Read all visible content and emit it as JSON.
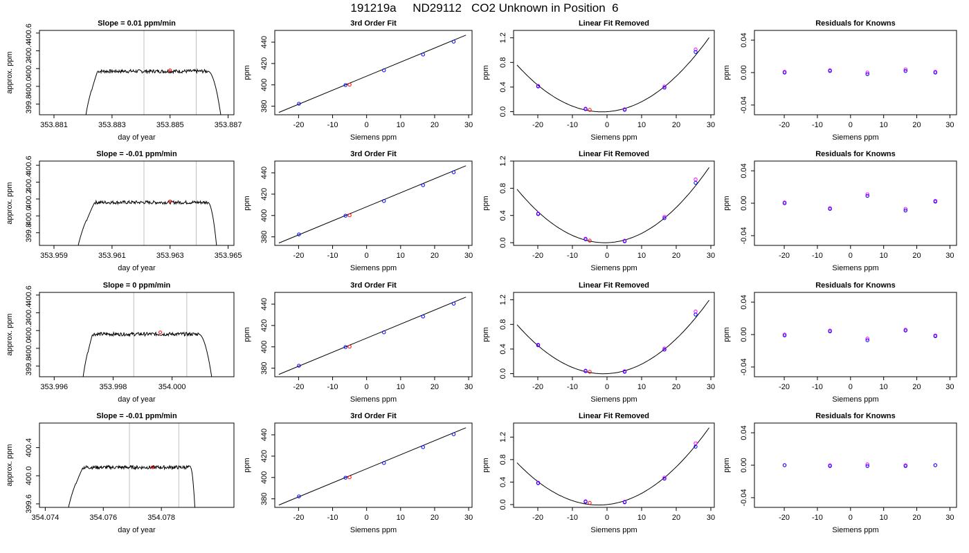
{
  "figure": {
    "title": "191219a     ND29112   CO2 Unknown in Position  6",
    "colors": {
      "trace": "#000000",
      "known": "#0000ff",
      "known_alt": "#ff00ff",
      "unknown": "#ff0000",
      "vline": "#bfbfbf"
    }
  },
  "chart_data": [
    {
      "type": "line",
      "title": "Slope =  0.01  ppm/min",
      "xlabel": "day of year",
      "ylabel": "approx. ppm",
      "xlim": [
        353.8805,
        353.8872
      ],
      "ylim": [
        399.68,
        400.63
      ],
      "xticks": [
        353.881,
        353.883,
        353.885,
        353.887
      ],
      "xtick_labels": [
        "353.881",
        "353.883",
        "353.885",
        "353.887"
      ],
      "yticks": [
        399.8,
        400.0,
        400.2,
        400.4,
        400.6
      ],
      "ytick_labels": [
        "399.8",
        "400.0",
        "400.2",
        "400.4",
        "400.6"
      ],
      "vlines": [
        353.8841,
        353.8859
      ],
      "marker": {
        "x": 353.885,
        "y": 400.18
      },
      "trace": {
        "x_start": 353.882,
        "x_rise_end": 353.8825,
        "x_fall_start": 353.8863,
        "x_end": 353.8869,
        "y_plateau": 400.17,
        "noise": 0.02
      }
    },
    {
      "type": "scatter",
      "title": "3rd Order Fit",
      "xlabel": "Siemens ppm",
      "ylabel": "ppm",
      "xlim": [
        -27,
        31
      ],
      "ylim": [
        372,
        451
      ],
      "xticks": [
        -20,
        -10,
        0,
        10,
        20,
        30
      ],
      "yticks": [
        380,
        400,
        420,
        440
      ],
      "line": {
        "x": [
          -25.8,
          29.2
        ],
        "y": [
          374.2,
          446.6
        ]
      },
      "knowns": [
        {
          "x": -19.9,
          "y": 382.3
        },
        {
          "x": -6.2,
          "y": 399.8
        },
        {
          "x": 5.1,
          "y": 413.6
        },
        {
          "x": 16.6,
          "y": 428.4
        },
        {
          "x": 25.6,
          "y": 440.5
        }
      ],
      "unknown": {
        "x": -5.0,
        "y": 400.2
      }
    },
    {
      "type": "scatter",
      "title": "Linear Fit Removed",
      "xlabel": "Siemens ppm",
      "ylabel": "ppm",
      "xlim": [
        -27,
        31
      ],
      "ylim": [
        -0.05,
        1.32
      ],
      "xticks": [
        -20,
        -10,
        0,
        10,
        20,
        30
      ],
      "yticks": [
        0.0,
        0.4,
        0.8,
        1.2
      ],
      "ytick_labels": [
        "0.0",
        "0.4",
        "0.8",
        "1.2"
      ],
      "curve": {
        "x0": -26,
        "x1": 29.5,
        "a": 0.00126,
        "b": 0.0036,
        "c": 0.0
      },
      "knowns": [
        {
          "x": -19.9,
          "y": 0.41
        },
        {
          "x": -6.2,
          "y": 0.04
        },
        {
          "x": 5.1,
          "y": 0.03
        },
        {
          "x": 16.6,
          "y": 0.39
        },
        {
          "x": 25.6,
          "y": 0.97
        }
      ],
      "knowns_alt": [
        {
          "x": -19.9,
          "y": 0.42
        },
        {
          "x": -6.2,
          "y": 0.05
        },
        {
          "x": 5.1,
          "y": 0.04
        },
        {
          "x": 16.6,
          "y": 0.41
        },
        {
          "x": 25.6,
          "y": 1.01
        }
      ],
      "unknown": {
        "x": -5.0,
        "y": 0.03
      }
    },
    {
      "type": "scatter",
      "title": "Residuals for Knowns",
      "xlabel": "Siemens ppm",
      "ylabel": "ppm",
      "xlim": [
        -29,
        32
      ],
      "ylim": [
        -0.052,
        0.052
      ],
      "xticks": [
        -20,
        -10,
        0,
        10,
        20,
        30
      ],
      "yticks": [
        -0.04,
        0.0,
        0.04
      ],
      "ytick_labels": [
        "-0.04",
        "0.00",
        "0.04"
      ],
      "knowns": [
        {
          "x": -19.9,
          "y": 0.0
        },
        {
          "x": -6.2,
          "y": 0.002
        },
        {
          "x": 5.1,
          "y": -0.002
        },
        {
          "x": 16.6,
          "y": 0.002
        },
        {
          "x": 25.6,
          "y": 0.0
        }
      ],
      "knowns_alt": [
        {
          "x": -19.9,
          "y": 0.001
        },
        {
          "x": -6.2,
          "y": 0.003
        },
        {
          "x": 5.1,
          "y": 0.0
        },
        {
          "x": 16.6,
          "y": 0.004
        },
        {
          "x": 25.6,
          "y": 0.001
        }
      ]
    },
    {
      "type": "line",
      "title": "Slope =  -0.01  ppm/min",
      "xlabel": "day of year",
      "ylabel": "approx. ppm",
      "xlim": [
        353.9585,
        353.9652
      ],
      "ylim": [
        399.65,
        400.65
      ],
      "xticks": [
        353.959,
        353.961,
        353.963,
        353.965
      ],
      "xtick_labels": [
        "353.959",
        "353.961",
        "353.963",
        "353.965"
      ],
      "yticks": [
        399.8,
        400.0,
        400.2,
        400.4,
        400.6
      ],
      "ytick_labels": [
        "399.8",
        "400.0",
        "400.2",
        "400.4",
        "400.6"
      ],
      "vlines": [
        353.9621,
        353.9639
      ],
      "marker": {
        "x": 353.963,
        "y": 400.17
      },
      "trace": {
        "x_start": 353.9597,
        "x_rise_end": 353.9604,
        "x_fall_start": 353.9643,
        "x_end": 353.9647,
        "y_plateau": 400.16,
        "noise": 0.02
      }
    },
    {
      "type": "scatter",
      "title": "3rd Order Fit",
      "xlabel": "Siemens ppm",
      "ylabel": "ppm",
      "xlim": [
        -27,
        31
      ],
      "ylim": [
        372,
        451
      ],
      "xticks": [
        -20,
        -10,
        0,
        10,
        20,
        30
      ],
      "yticks": [
        380,
        400,
        420,
        440
      ],
      "line": {
        "x": [
          -25.8,
          29.2
        ],
        "y": [
          374.2,
          446.6
        ]
      },
      "knowns": [
        {
          "x": -19.9,
          "y": 382.3
        },
        {
          "x": -6.2,
          "y": 399.8
        },
        {
          "x": 5.1,
          "y": 413.6
        },
        {
          "x": 16.6,
          "y": 428.4
        },
        {
          "x": 25.6,
          "y": 440.5
        }
      ],
      "unknown": {
        "x": -5.0,
        "y": 400.2
      }
    },
    {
      "type": "scatter",
      "title": "Linear Fit Removed",
      "xlabel": "Siemens ppm",
      "ylabel": "ppm",
      "xlim": [
        -27,
        31
      ],
      "ylim": [
        -0.04,
        1.2
      ],
      "xticks": [
        -20,
        -10,
        0,
        10,
        20,
        30
      ],
      "yticks": [
        0.0,
        0.4,
        0.8,
        1.2
      ],
      "ytick_labels": [
        "0.0",
        "0.4",
        "0.8",
        "1.2"
      ],
      "curve": {
        "x0": -26,
        "x1": 29.5,
        "a": 0.00122,
        "b": 0.0015,
        "c": 0.0
      },
      "knowns": [
        {
          "x": -19.9,
          "y": 0.42
        },
        {
          "x": -6.2,
          "y": 0.05
        },
        {
          "x": 5.1,
          "y": 0.02
        },
        {
          "x": 16.6,
          "y": 0.36
        },
        {
          "x": 25.6,
          "y": 0.88
        }
      ],
      "knowns_alt": [
        {
          "x": -19.9,
          "y": 0.43
        },
        {
          "x": -6.2,
          "y": 0.06
        },
        {
          "x": 5.1,
          "y": 0.03
        },
        {
          "x": 16.6,
          "y": 0.38
        },
        {
          "x": 25.6,
          "y": 0.93
        }
      ],
      "unknown": {
        "x": -5.0,
        "y": 0.03
      }
    },
    {
      "type": "scatter",
      "title": "Residuals for Knowns",
      "xlabel": "Siemens ppm",
      "ylabel": "ppm",
      "xlim": [
        -29,
        32
      ],
      "ylim": [
        -0.052,
        0.052
      ],
      "xticks": [
        -20,
        -10,
        0,
        10,
        20,
        30
      ],
      "yticks": [
        -0.04,
        0.0,
        0.04
      ],
      "ytick_labels": [
        "-0.04",
        "0.00",
        "0.04"
      ],
      "knowns": [
        {
          "x": -19.9,
          "y": 0.0
        },
        {
          "x": -6.2,
          "y": -0.007
        },
        {
          "x": 5.1,
          "y": 0.009
        },
        {
          "x": 16.6,
          "y": -0.009
        },
        {
          "x": 25.6,
          "y": 0.002
        }
      ],
      "knowns_alt": [
        {
          "x": -19.9,
          "y": 0.001
        },
        {
          "x": -6.2,
          "y": -0.006
        },
        {
          "x": 5.1,
          "y": 0.011
        },
        {
          "x": 16.6,
          "y": -0.007
        },
        {
          "x": 25.6,
          "y": 0.003
        }
      ]
    },
    {
      "type": "line",
      "title": "Slope =  0  ppm/min",
      "xlabel": "day of year",
      "ylabel": "approx. ppm",
      "xlim": [
        353.9955,
        354.0021
      ],
      "ylim": [
        399.68,
        400.63
      ],
      "xticks": [
        353.996,
        353.998,
        354.0
      ],
      "xtick_labels": [
        "353.996",
        "353.998",
        "354.000"
      ],
      "vlines": [
        353.9987,
        354.0005
      ],
      "marker": {
        "x": 353.9996,
        "y": 400.18
      },
      "yticks": [
        399.8,
        400.0,
        400.2,
        400.4,
        400.6
      ],
      "ytick_labels": [
        "399.8",
        "400.0",
        "400.2",
        "400.4",
        "400.6"
      ],
      "trace": {
        "x_start": 353.9969,
        "x_rise_end": 353.9973,
        "x_fall_start": 354.0009,
        "x_end": 354.0015,
        "y_plateau": 400.16,
        "noise": 0.02
      }
    },
    {
      "type": "scatter",
      "title": "3rd Order Fit",
      "xlabel": "Siemens ppm",
      "ylabel": "ppm",
      "xlim": [
        -27,
        31
      ],
      "ylim": [
        372,
        451
      ],
      "xticks": [
        -20,
        -10,
        0,
        10,
        20,
        30
      ],
      "yticks": [
        380,
        400,
        420,
        440
      ],
      "line": {
        "x": [
          -25.8,
          29.2
        ],
        "y": [
          374.2,
          446.6
        ]
      },
      "knowns": [
        {
          "x": -19.9,
          "y": 382.3
        },
        {
          "x": -6.2,
          "y": 399.8
        },
        {
          "x": 5.1,
          "y": 413.6
        },
        {
          "x": 16.6,
          "y": 428.4
        },
        {
          "x": 25.6,
          "y": 440.5
        }
      ],
      "unknown": {
        "x": -5.0,
        "y": 400.2
      }
    },
    {
      "type": "scatter",
      "title": "Linear Fit Removed",
      "xlabel": "Siemens ppm",
      "ylabel": "ppm",
      "xlim": [
        -27,
        31
      ],
      "ylim": [
        -0.05,
        1.32
      ],
      "xticks": [
        -20,
        -10,
        0,
        10,
        20,
        30
      ],
      "yticks": [
        0.0,
        0.4,
        0.8,
        1.2
      ],
      "ytick_labels": [
        "0.0",
        "0.4",
        "0.8",
        "1.2"
      ],
      "curve": {
        "x0": -26,
        "x1": 29.5,
        "a": 0.00128,
        "b": 0.0027,
        "c": 0.0
      },
      "knowns": [
        {
          "x": -19.9,
          "y": 0.46
        },
        {
          "x": -6.2,
          "y": 0.04
        },
        {
          "x": 5.1,
          "y": 0.03
        },
        {
          "x": 16.6,
          "y": 0.39
        },
        {
          "x": 25.6,
          "y": 0.96
        }
      ],
      "knowns_alt": [
        {
          "x": -19.9,
          "y": 0.47
        },
        {
          "x": -6.2,
          "y": 0.05
        },
        {
          "x": 5.1,
          "y": 0.04
        },
        {
          "x": 16.6,
          "y": 0.41
        },
        {
          "x": 25.6,
          "y": 1.01
        }
      ],
      "unknown": {
        "x": -5.0,
        "y": 0.03
      }
    },
    {
      "type": "scatter",
      "title": "Residuals for Knowns",
      "xlabel": "Siemens ppm",
      "ylabel": "ppm",
      "xlim": [
        -29,
        32
      ],
      "ylim": [
        -0.052,
        0.052
      ],
      "xticks": [
        -20,
        -10,
        0,
        10,
        20,
        30
      ],
      "yticks": [
        -0.04,
        0.0,
        0.04
      ],
      "ytick_labels": [
        "-0.04",
        "0.00",
        "0.04"
      ],
      "knowns": [
        {
          "x": -19.9,
          "y": -0.001
        },
        {
          "x": -6.2,
          "y": 0.004
        },
        {
          "x": 5.1,
          "y": -0.007
        },
        {
          "x": 16.6,
          "y": 0.005
        },
        {
          "x": 25.6,
          "y": -0.002
        }
      ],
      "knowns_alt": [
        {
          "x": -19.9,
          "y": 0.0
        },
        {
          "x": -6.2,
          "y": 0.005
        },
        {
          "x": 5.1,
          "y": -0.005
        },
        {
          "x": 16.6,
          "y": 0.006
        },
        {
          "x": 25.6,
          "y": -0.001
        }
      ]
    },
    {
      "type": "line",
      "title": "Slope =  -0.01  ppm/min",
      "xlabel": "day of year",
      "ylabel": "approx. ppm",
      "xlim": [
        354.0738,
        354.0805
      ],
      "ylim": [
        399.55,
        400.75
      ],
      "xticks": [
        354.074,
        354.076,
        354.078
      ],
      "xtick_labels": [
        "354.074",
        "354.076",
        "354.078"
      ],
      "yticks": [
        399.6,
        400.0,
        400.4
      ],
      "ytick_labels": [
        "399.6",
        "400.0",
        "400.4"
      ],
      "vlines": [
        354.0769,
        354.0786
      ],
      "marker": {
        "x": 354.0777,
        "y": 400.12
      },
      "trace": {
        "x_start": 354.0747,
        "x_rise_end": 354.0753,
        "x_fall_start": 354.079,
        "x_end": 354.0792,
        "y_plateau": 400.12,
        "noise": 0.025
      }
    },
    {
      "type": "scatter",
      "title": "3rd Order Fit",
      "xlabel": "Siemens ppm",
      "ylabel": "ppm",
      "xlim": [
        -27,
        31
      ],
      "ylim": [
        372,
        451
      ],
      "xticks": [
        -20,
        -10,
        0,
        10,
        20,
        30
      ],
      "yticks": [
        380,
        400,
        420,
        440
      ],
      "line": {
        "x": [
          -25.8,
          29.2
        ],
        "y": [
          374.2,
          446.6
        ]
      },
      "knowns": [
        {
          "x": -19.9,
          "y": 382.3
        },
        {
          "x": -6.2,
          "y": 399.8
        },
        {
          "x": 5.1,
          "y": 413.6
        },
        {
          "x": 16.6,
          "y": 428.4
        },
        {
          "x": 25.6,
          "y": 440.5
        }
      ],
      "unknown": {
        "x": -5.0,
        "y": 400.2
      }
    },
    {
      "type": "scatter",
      "title": "Linear Fit Removed",
      "xlabel": "Siemens ppm",
      "ylabel": "ppm",
      "xlim": [
        -27,
        31
      ],
      "ylim": [
        -0.05,
        1.45
      ],
      "xticks": [
        -20,
        -10,
        0,
        10,
        20,
        30
      ],
      "yticks": [
        0.0,
        0.4,
        0.8,
        1.2
      ],
      "ytick_labels": [
        "0.0",
        "0.4",
        "0.8",
        "1.2"
      ],
      "curve": {
        "x0": -26,
        "x1": 29.5,
        "a": 0.00135,
        "b": 0.0065,
        "c": 0.0
      },
      "knowns": [
        {
          "x": -19.9,
          "y": 0.38
        },
        {
          "x": -6.2,
          "y": 0.05
        },
        {
          "x": 5.1,
          "y": 0.04
        },
        {
          "x": 16.6,
          "y": 0.46
        },
        {
          "x": 25.6,
          "y": 1.03
        }
      ],
      "knowns_alt": [
        {
          "x": -19.9,
          "y": 0.39
        },
        {
          "x": -6.2,
          "y": 0.06
        },
        {
          "x": 5.1,
          "y": 0.05
        },
        {
          "x": 16.6,
          "y": 0.48
        },
        {
          "x": 25.6,
          "y": 1.09
        }
      ],
      "unknown": {
        "x": -5.0,
        "y": 0.03
      }
    },
    {
      "type": "scatter",
      "title": "Residuals for Knowns",
      "xlabel": "Siemens ppm",
      "ylabel": "ppm",
      "xlim": [
        -29,
        32
      ],
      "ylim": [
        -0.052,
        0.052
      ],
      "xticks": [
        -20,
        -10,
        0,
        10,
        20,
        30
      ],
      "yticks": [
        -0.04,
        0.0,
        0.04
      ],
      "ytick_labels": [
        "-0.04",
        "0.00",
        "0.04"
      ],
      "knowns": [
        {
          "x": -19.9,
          "y": 0.0
        },
        {
          "x": -6.2,
          "y": -0.001
        },
        {
          "x": 5.1,
          "y": -0.001
        },
        {
          "x": 16.6,
          "y": -0.001
        },
        {
          "x": 25.6,
          "y": 0.0
        }
      ],
      "knowns_alt": [
        {
          "x": -19.9,
          "y": 0.0
        },
        {
          "x": -6.2,
          "y": 0.0
        },
        {
          "x": 5.1,
          "y": 0.001
        },
        {
          "x": 16.6,
          "y": 0.0
        },
        {
          "x": 25.6,
          "y": 0.0
        }
      ]
    }
  ]
}
